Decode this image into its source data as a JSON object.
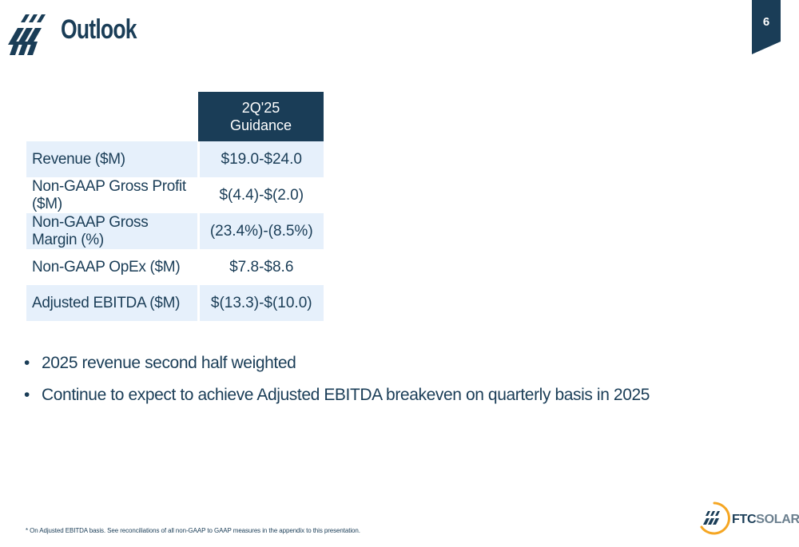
{
  "page": {
    "title": "Outlook",
    "page_number": "6"
  },
  "table": {
    "header": [
      "2Q'25",
      "Guidance"
    ],
    "rows": [
      {
        "label": "Revenue ($M)",
        "value": "$19.0-$24.0"
      },
      {
        "label": "Non-GAAP Gross Profit ($M)",
        "value": "$(4.4)-$(2.0)"
      },
      {
        "label": "Non-GAAP Gross Margin (%)",
        "value": "(23.4%)-(8.5%)"
      },
      {
        "label": "Non-GAAP OpEx ($M)",
        "value": "$7.8-$8.6"
      },
      {
        "label": "Adjusted EBITDA ($M)",
        "value": "$(13.3)-$(10.0)"
      }
    ]
  },
  "bullets": [
    "2025 revenue second half weighted",
    "Continue to expect to achieve Adjusted EBITDA breakeven on quarterly basis in 2025"
  ],
  "bullet_glyph": "•",
  "footnote": "* On Adjusted EBITDA basis. See reconciliations of all non-GAAP to GAAP measures in the appendix to this presentation.",
  "brand": {
    "name_bold": "FTC",
    "name_light": "SOLAR",
    "mark_icon": "ftc-solar-logo-icon"
  },
  "colors": {
    "primary": "#1a3d57",
    "row_shade": "#e6f0fb",
    "brand_orange": "#f5a623"
  }
}
